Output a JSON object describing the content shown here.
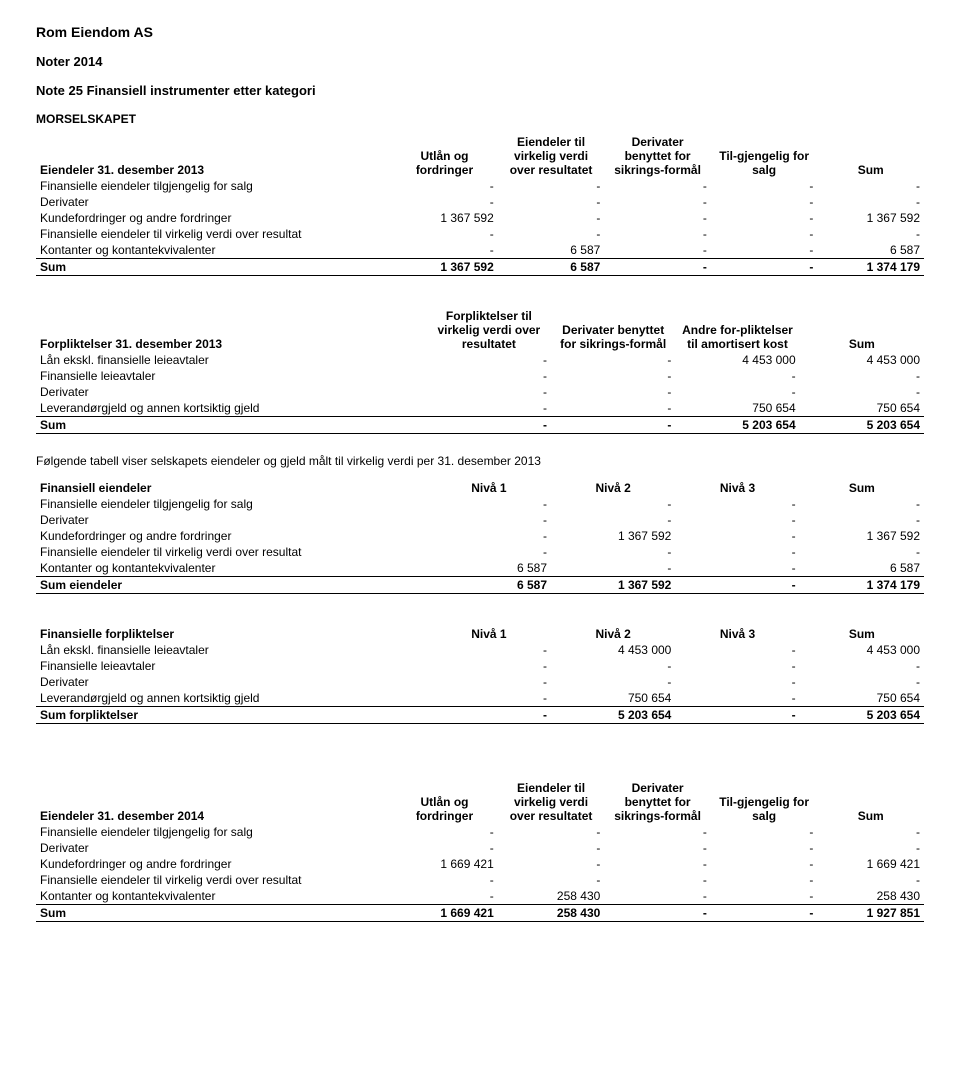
{
  "header": {
    "company": "Rom Eiendom AS",
    "notes": "Noter 2014",
    "note_title": "Note 25 Finansiell instrumenter etter kategori",
    "subhead": "MORSELSKAPET"
  },
  "following_text": "Følgende tabell viser selskapets eiendeler og gjeld målt til virkelig verdi per 31. desember 2013",
  "t1": {
    "title": "Eiendeler 31. desember 2013",
    "head": [
      "Utlån og fordringer",
      "Eiendeler til virkelig verdi over resultatet",
      "Derivater benyttet for sikrings-formål",
      "Til-gjengelig for salg",
      "Sum"
    ],
    "rows": [
      {
        "label": "Finansielle eiendeler tilgjengelig for salg",
        "v": [
          "-",
          "-",
          "-",
          "-",
          "-"
        ]
      },
      {
        "label": "Derivater",
        "v": [
          "-",
          "-",
          "-",
          "-",
          "-"
        ]
      },
      {
        "label": "Kundefordringer og andre fordringer",
        "v": [
          "1 367 592",
          "-",
          "-",
          "-",
          "1 367 592"
        ]
      },
      {
        "label": "Finansielle eiendeler til virkelig verdi over resultat",
        "v": [
          "-",
          "-",
          "-",
          "-",
          "-"
        ]
      },
      {
        "label": "Kontanter og kontantekvivalenter",
        "v": [
          "-",
          "6 587",
          "-",
          "-",
          "6 587"
        ]
      }
    ],
    "total": {
      "label": "Sum",
      "v": [
        "1 367 592",
        "6 587",
        "-",
        "-",
        "1 374 179"
      ]
    }
  },
  "t2": {
    "title": "Forpliktelser 31. desember 2013",
    "head": [
      "Forpliktelser til virkelig verdi over resultatet",
      "Derivater benyttet for sikrings-formål",
      "Andre for-pliktelser til amortisert kost",
      "Sum"
    ],
    "rows": [
      {
        "label": "Lån ekskl. finansielle leieavtaler",
        "v": [
          "-",
          "-",
          "4 453 000",
          "4 453 000"
        ]
      },
      {
        "label": "Finansielle leieavtaler",
        "v": [
          "-",
          "-",
          "-",
          "-"
        ]
      },
      {
        "label": "Derivater",
        "v": [
          "-",
          "-",
          "-",
          "-"
        ]
      },
      {
        "label": "Leverandørgjeld og annen kortsiktig gjeld",
        "v": [
          "-",
          "-",
          "750 654",
          "750 654"
        ]
      }
    ],
    "total": {
      "label": "Sum",
      "v": [
        "-",
        "-",
        "5 203 654",
        "5 203 654"
      ]
    }
  },
  "t3": {
    "title": "Finansiell eiendeler",
    "head": [
      "Nivå 1",
      "Nivå 2",
      "Nivå 3",
      "Sum"
    ],
    "rows": [
      {
        "label": "Finansielle eiendeler tilgjengelig for salg",
        "v": [
          "-",
          "-",
          "-",
          "-"
        ]
      },
      {
        "label": "Derivater",
        "v": [
          "-",
          "-",
          "-",
          "-"
        ]
      },
      {
        "label": "Kundefordringer og andre fordringer",
        "v": [
          "-",
          "1 367 592",
          "-",
          "1 367 592"
        ]
      },
      {
        "label": "Finansielle eiendeler til virkelig verdi over resultat",
        "v": [
          "-",
          "-",
          "-",
          "-"
        ]
      },
      {
        "label": "Kontanter og kontantekvivalenter",
        "v": [
          "6 587",
          "-",
          "-",
          "6 587"
        ]
      }
    ],
    "total": {
      "label": "Sum eiendeler",
      "v": [
        "6 587",
        "1 367 592",
        "-",
        "1 374 179"
      ]
    }
  },
  "t4": {
    "title": "Finansielle forpliktelser",
    "head": [
      "Nivå 1",
      "Nivå 2",
      "Nivå 3",
      "Sum"
    ],
    "rows": [
      {
        "label": "Lån ekskl. finansielle leieavtaler",
        "v": [
          "-",
          "4 453 000",
          "-",
          "4 453 000"
        ]
      },
      {
        "label": "Finansielle leieavtaler",
        "v": [
          "-",
          "-",
          "-",
          "-"
        ]
      },
      {
        "label": "Derivater",
        "v": [
          "-",
          "-",
          "-",
          "-"
        ]
      },
      {
        "label": "Leverandørgjeld og annen kortsiktig gjeld",
        "v": [
          "-",
          "750 654",
          "-",
          "750 654"
        ]
      }
    ],
    "total": {
      "label": "Sum forpliktelser",
      "v": [
        "-",
        "5 203 654",
        "-",
        "5 203 654"
      ]
    }
  },
  "t5": {
    "title": "Eiendeler 31. desember 2014",
    "head": [
      "Utlån og fordringer",
      "Eiendeler til virkelig verdi over resultatet",
      "Derivater benyttet for sikrings-formål",
      "Til-gjengelig for salg",
      "Sum"
    ],
    "rows": [
      {
        "label": "Finansielle eiendeler tilgjengelig for salg",
        "v": [
          "-",
          "-",
          "-",
          "-",
          "-"
        ]
      },
      {
        "label": "Derivater",
        "v": [
          "-",
          "-",
          "-",
          "-",
          "-"
        ]
      },
      {
        "label": "Kundefordringer og andre fordringer",
        "v": [
          "1 669 421",
          "-",
          "-",
          "-",
          "1 669 421"
        ]
      },
      {
        "label": "Finansielle eiendeler til virkelig verdi over resultat",
        "v": [
          "-",
          "-",
          "-",
          "-",
          "-"
        ]
      },
      {
        "label": "Kontanter og kontantekvivalenter",
        "v": [
          "-",
          "258 430",
          "-",
          "-",
          "258 430"
        ]
      }
    ],
    "total": {
      "label": "Sum",
      "v": [
        "1 669 421",
        "258 430",
        "-",
        "-",
        "1 927 851"
      ]
    }
  }
}
